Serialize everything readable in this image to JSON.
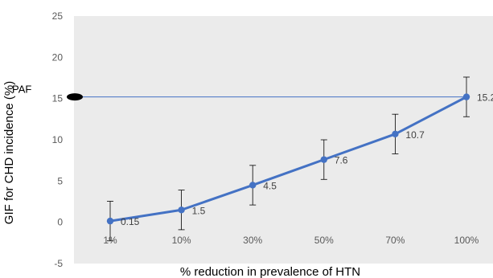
{
  "chart_data": {
    "type": "line",
    "categories": [
      "1%",
      "10%",
      "30%",
      "50%",
      "70%",
      "100%"
    ],
    "series": [
      {
        "values": [
          0.15,
          1.5,
          4.5,
          7.6,
          10.7,
          15.2
        ],
        "data_labels": [
          "0.15",
          "1.5",
          "4.5",
          "7.6",
          "10.7",
          "15.2"
        ],
        "error": [
          2.4,
          2.4,
          2.4,
          2.4,
          2.4,
          2.4
        ],
        "color": "#4472C4"
      }
    ],
    "xlabel": "% reduction in prevalence of HTN",
    "ylabel": "GIF for CHD incidence (%)",
    "ylim": [
      -5,
      25
    ],
    "yticks": [
      -5,
      0,
      5,
      10,
      15,
      20,
      25
    ],
    "grid": false,
    "plot_background": "#EBEBEB",
    "reference_line": {
      "label": "PAF",
      "value": 15.2,
      "color": "#4472C4",
      "marker_color": "#000000"
    }
  }
}
